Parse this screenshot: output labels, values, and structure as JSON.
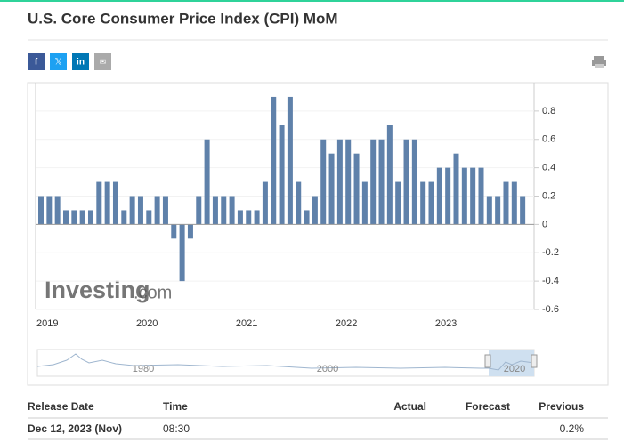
{
  "title": "U.S. Core Consumer Price Index (CPI) MoM",
  "share": [
    "f",
    "𝕏",
    "in",
    "✉"
  ],
  "chart_data": {
    "type": "bar",
    "color": "#5f81aa",
    "categories": [
      "2019",
      null,
      null,
      null,
      null,
      null,
      null,
      null,
      null,
      null,
      null,
      null,
      "2020",
      null,
      null,
      null,
      null,
      null,
      null,
      null,
      null,
      null,
      null,
      null,
      "2021",
      null,
      null,
      null,
      null,
      null,
      null,
      null,
      null,
      null,
      null,
      null,
      "2022",
      null,
      null,
      null,
      null,
      null,
      null,
      null,
      null,
      null,
      null,
      null,
      "2023",
      null,
      null,
      null,
      null,
      null,
      null,
      null,
      null,
      null,
      null
    ],
    "values": [
      0.2,
      0.2,
      0.2,
      0.1,
      0.1,
      0.1,
      0.1,
      0.3,
      0.3,
      0.3,
      0.1,
      0.2,
      0.2,
      0.1,
      0.2,
      0.2,
      -0.1,
      -0.4,
      -0.1,
      0.2,
      0.6,
      0.2,
      0.2,
      0.2,
      0.1,
      0.1,
      0.1,
      0.3,
      0.9,
      0.7,
      0.9,
      0.3,
      0.1,
      0.2,
      0.6,
      0.5,
      0.6,
      0.6,
      0.5,
      0.3,
      0.6,
      0.6,
      0.7,
      0.3,
      0.6,
      0.6,
      0.3,
      0.3,
      0.4,
      0.4,
      0.5,
      0.4,
      0.4,
      0.4,
      0.2,
      0.2,
      0.3,
      0.3,
      0.2
    ],
    "ylim": [
      -0.6,
      1.0
    ],
    "yticks": [
      -0.6,
      -0.4,
      -0.2,
      0,
      0.2,
      0.4,
      0.6,
      0.8
    ],
    "watermark": [
      "Investing",
      ".com"
    ],
    "navigator_labels": [
      "1980",
      "2000",
      "2020"
    ]
  },
  "table": {
    "header": [
      "Release Date",
      "Time",
      "Actual",
      "Forecast",
      "Previous"
    ],
    "row": {
      "date": "Dec 12, 2023 (Nov)",
      "time": "08:30",
      "previous": "0.2%"
    }
  }
}
